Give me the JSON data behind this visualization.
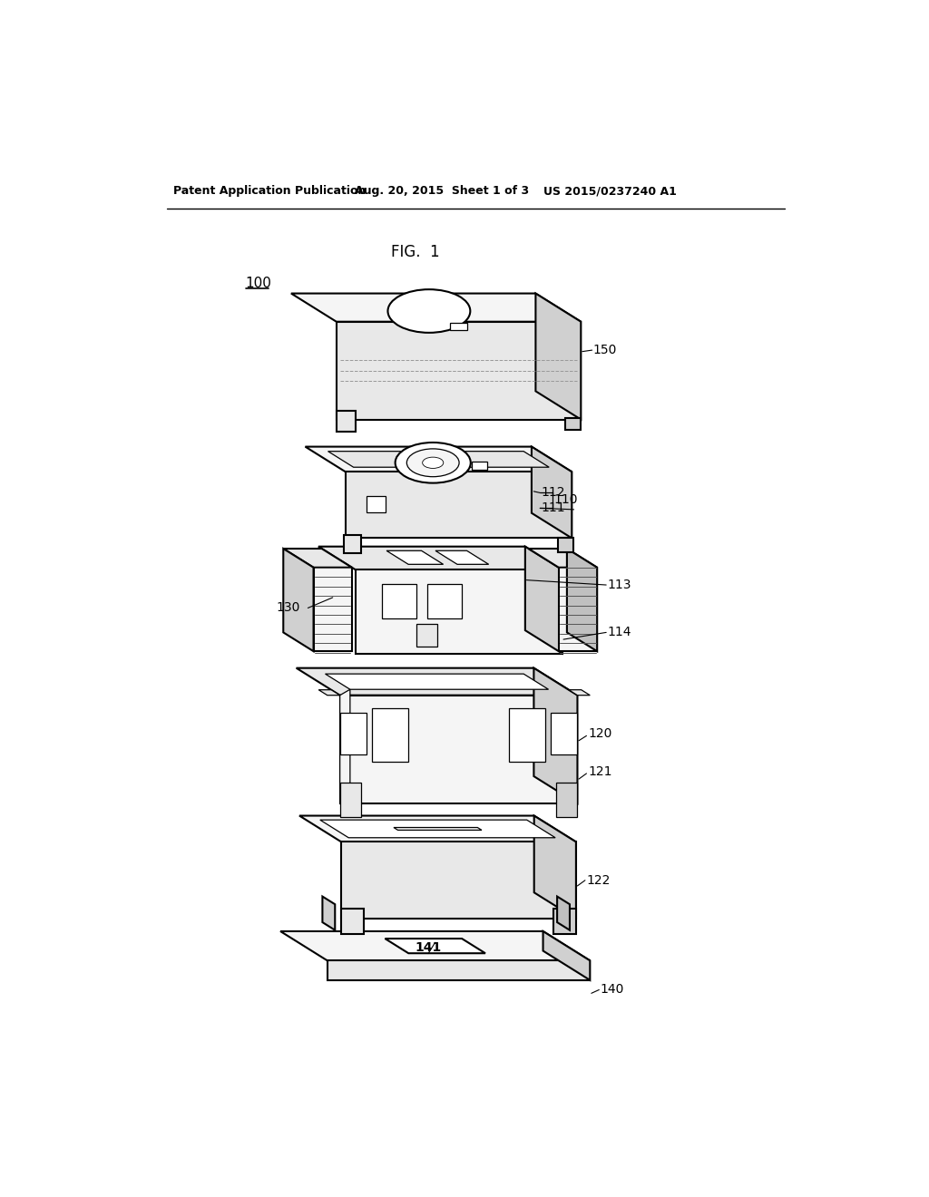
{
  "bg_color": "#ffffff",
  "title": "FIG.  1",
  "header_left": "Patent Application Publication",
  "header_mid": "Aug. 20, 2015  Sheet 1 of 3",
  "header_right": "US 2015/0237240 A1",
  "label_100": "100",
  "label_150": "150",
  "label_112": "112",
  "label_111": "111",
  "label_110": "110",
  "label_113": "113",
  "label_130": "130",
  "label_114": "114",
  "label_120": "120",
  "label_121": "121",
  "label_122": "122",
  "label_141": "141",
  "label_140": "140",
  "line_color": "#000000",
  "fc_white": "#ffffff",
  "fc_light": "#f5f5f5",
  "fc_mid": "#e8e8e8",
  "fc_dark": "#d0d0d0",
  "fc_darker": "#c0c0c0"
}
